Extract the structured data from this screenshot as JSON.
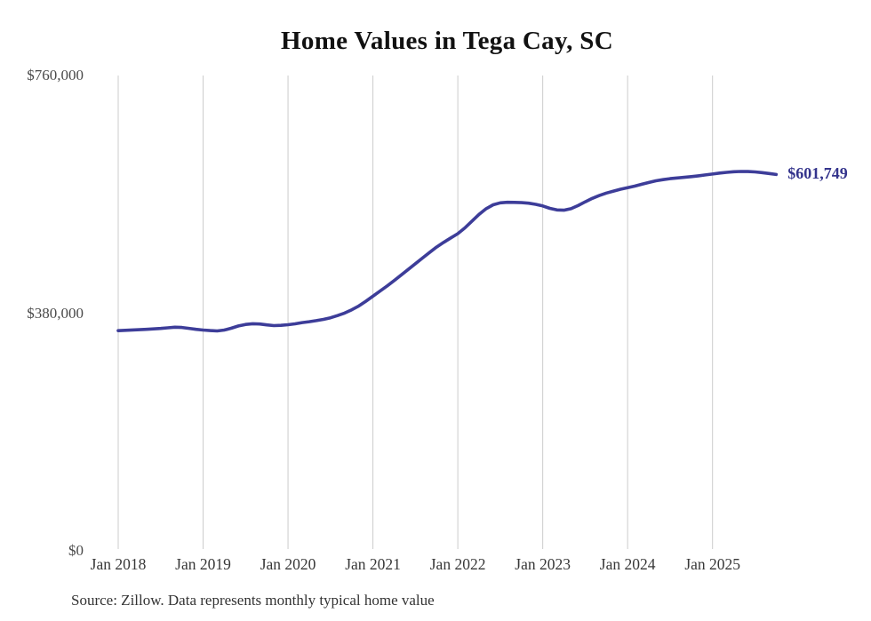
{
  "title": "Home Values in Tega Cay, SC",
  "source_note": "Source: Zillow. Data represents monthly typical home value",
  "colors": {
    "background": "#ffffff",
    "line": "#3d3d99",
    "end_label_text": "#34348c",
    "gridline": "#cccccc",
    "title_text": "#111111",
    "axis_text": "#4a4a4a",
    "source_text": "#333333"
  },
  "chart_data": {
    "type": "line",
    "title": "Home Values in Tega Cay, SC",
    "unit": "USD",
    "frequency": "monthly",
    "grid": "vertical-only",
    "legend": "none",
    "ylim": [
      0,
      760000
    ],
    "yticks": [
      {
        "label": "$0",
        "value": 0
      },
      {
        "label": "$380,000",
        "value": 380000
      },
      {
        "label": "$760,000",
        "value": 760000
      }
    ],
    "xticks": [
      "Jan 2018",
      "Jan 2019",
      "Jan 2020",
      "Jan 2021",
      "Jan 2022",
      "Jan 2023",
      "Jan 2024",
      "Jan 2025"
    ],
    "end_label": "$601,749",
    "latest_value": 601749,
    "x": [
      "Jan 2018",
      "Feb 2018",
      "Mar 2018",
      "Apr 2018",
      "May 2018",
      "Jun 2018",
      "Jul 2018",
      "Aug 2018",
      "Sep 2018",
      "Oct 2018",
      "Nov 2018",
      "Dec 2018",
      "Jan 2019",
      "Feb 2019",
      "Mar 2019",
      "Apr 2019",
      "May 2019",
      "Jun 2019",
      "Jul 2019",
      "Aug 2019",
      "Sep 2019",
      "Oct 2019",
      "Nov 2019",
      "Dec 2019",
      "Jan 2020",
      "Feb 2020",
      "Mar 2020",
      "Apr 2020",
      "May 2020",
      "Jun 2020",
      "Jul 2020",
      "Aug 2020",
      "Sep 2020",
      "Oct 2020",
      "Nov 2020",
      "Dec 2020",
      "Jan 2021",
      "Feb 2021",
      "Mar 2021",
      "Apr 2021",
      "May 2021",
      "Jun 2021",
      "Jul 2021",
      "Aug 2021",
      "Sep 2021",
      "Oct 2021",
      "Nov 2021",
      "Dec 2021",
      "Jan 2022",
      "Feb 2022",
      "Mar 2022",
      "Apr 2022",
      "May 2022",
      "Jun 2022",
      "Jul 2022",
      "Aug 2022",
      "Sep 2022",
      "Oct 2022",
      "Nov 2022",
      "Dec 2022",
      "Jan 2023",
      "Feb 2023",
      "Mar 2023",
      "Apr 2023",
      "May 2023",
      "Jun 2023",
      "Jul 2023",
      "Aug 2023",
      "Sep 2023",
      "Oct 2023",
      "Nov 2023",
      "Dec 2023",
      "Jan 2024",
      "Feb 2024",
      "Mar 2024",
      "Apr 2024",
      "May 2024",
      "Jun 2024",
      "Jul 2024",
      "Aug 2024",
      "Sep 2024",
      "Oct 2024",
      "Nov 2024",
      "Dec 2024",
      "Jan 2025",
      "Feb 2025",
      "Mar 2025",
      "Apr 2025",
      "May 2025",
      "Jun 2025",
      "Jul 2025",
      "Aug 2025",
      "Sep 2025",
      "Oct 2025"
    ],
    "values": [
      352000,
      352600,
      353100,
      353600,
      354200,
      354800,
      355600,
      356600,
      357500,
      357100,
      355700,
      354200,
      353000,
      352100,
      351600,
      353000,
      356000,
      359500,
      362000,
      363100,
      362600,
      361200,
      360100,
      360600,
      361600,
      363000,
      364900,
      366400,
      368000,
      370100,
      372600,
      376100,
      380200,
      385400,
      391500,
      399000,
      407200,
      415300,
      423500,
      432200,
      441000,
      450000,
      459100,
      468100,
      477000,
      485700,
      493200,
      500300,
      507200,
      516400,
      527100,
      538000,
      547100,
      553300,
      556400,
      557300,
      557200,
      556700,
      555900,
      554000,
      551500,
      547600,
      545100,
      544600,
      547000,
      552100,
      558000,
      563500,
      568100,
      572100,
      575200,
      578100,
      580600,
      583200,
      586100,
      589000,
      591600,
      593500,
      595100,
      596200,
      597200,
      598300,
      599600,
      601000,
      602500,
      604000,
      605200,
      606100,
      606600,
      606500,
      605800,
      604800,
      603300,
      601749
    ]
  }
}
